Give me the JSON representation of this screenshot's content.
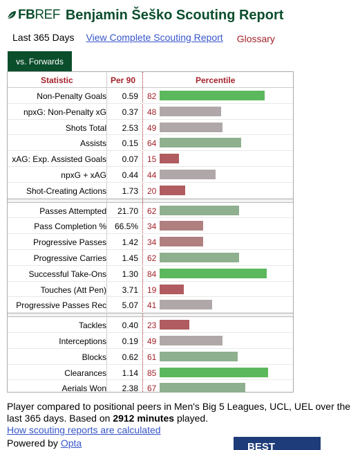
{
  "header": {
    "logo_fb": "FB",
    "logo_ref": "REF",
    "title": "Benjamin Šeško Scouting Report"
  },
  "nav": {
    "period": "Last 365 Days",
    "full_report_link": "View Complete Scouting Report",
    "glossary": "Glossary"
  },
  "tab": {
    "label": "vs. Forwards"
  },
  "table": {
    "headers": {
      "statistic": "Statistic",
      "per90": "Per 90",
      "percentile": "Percentile"
    },
    "groups": [
      [
        {
          "stat": "Non-Penalty Goals",
          "per90": "0.59",
          "pct": 82
        },
        {
          "stat": "npxG: Non-Penalty xG",
          "per90": "0.37",
          "pct": 48
        },
        {
          "stat": "Shots Total",
          "per90": "2.53",
          "pct": 49
        },
        {
          "stat": "Assists",
          "per90": "0.15",
          "pct": 64
        },
        {
          "stat": "xAG: Exp. Assisted Goals",
          "per90": "0.07",
          "pct": 15
        },
        {
          "stat": "npxG + xAG",
          "per90": "0.44",
          "pct": 44
        },
        {
          "stat": "Shot-Creating Actions",
          "per90": "1.73",
          "pct": 20
        }
      ],
      [
        {
          "stat": "Passes Attempted",
          "per90": "21.70",
          "pct": 62
        },
        {
          "stat": "Pass Completion %",
          "per90": "66.5%",
          "pct": 34
        },
        {
          "stat": "Progressive Passes",
          "per90": "1.42",
          "pct": 34
        },
        {
          "stat": "Progressive Carries",
          "per90": "1.45",
          "pct": 62
        },
        {
          "stat": "Successful Take-Ons",
          "per90": "1.30",
          "pct": 84
        },
        {
          "stat": "Touches (Att Pen)",
          "per90": "3.71",
          "pct": 19
        },
        {
          "stat": "Progressive Passes Rec",
          "per90": "5.07",
          "pct": 41
        }
      ],
      [
        {
          "stat": "Tackles",
          "per90": "0.40",
          "pct": 23
        },
        {
          "stat": "Interceptions",
          "per90": "0.19",
          "pct": 49
        },
        {
          "stat": "Blocks",
          "per90": "0.62",
          "pct": 61
        },
        {
          "stat": "Clearances",
          "per90": "1.14",
          "pct": 85
        },
        {
          "stat": "Aerials Won",
          "per90": "2.38",
          "pct": 67
        }
      ]
    ]
  },
  "colors": {
    "elite": "#5cb85c",
    "above": "#8fb08f",
    "average": "#b0a8a8",
    "below_avg": "#b08080",
    "low": "#b05c60",
    "brand": "#0b4e2c",
    "accent_red": "#a3222a",
    "link": "#3756c8"
  },
  "footer": {
    "text_before": "Player compared to positional peers in Men's Big 5 Leagues, UCL, UEL over the last 365 days. Based on",
    "minutes": "2912 minutes",
    "text_after": "played.",
    "how_link": "How scouting reports are calculated",
    "powered_by": "Powered by",
    "opta": "Opta"
  },
  "ad": {
    "text": "BEST"
  }
}
